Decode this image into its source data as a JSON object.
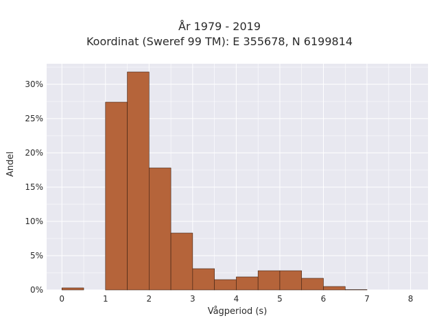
{
  "chart_data": {
    "type": "bar",
    "title_lines": [
      "År 1979 - 2019",
      "Koordinat (Sweref 99 TM): E 355678, N 6199814"
    ],
    "xlabel": "Vågperiod (s)",
    "ylabel": "Andel",
    "xlim": [
      -0.35,
      8.4
    ],
    "ylim": [
      0,
      33.0
    ],
    "x_ticks": [
      0,
      1,
      2,
      3,
      4,
      5,
      6,
      7,
      8
    ],
    "y_ticks": [
      0,
      5,
      10,
      15,
      20,
      25,
      30
    ],
    "y_tick_labels": [
      "0%",
      "5%",
      "10%",
      "15%",
      "20%",
      "25%",
      "30%"
    ],
    "grid": true,
    "bin_width": 0.5,
    "bins": [
      {
        "x0": 0.0,
        "x1": 0.5,
        "value": 0.3
      },
      {
        "x0": 0.5,
        "x1": 1.0,
        "value": 0.0
      },
      {
        "x0": 1.0,
        "x1": 1.5,
        "value": 27.4
      },
      {
        "x0": 1.5,
        "x1": 2.0,
        "value": 31.8
      },
      {
        "x0": 2.0,
        "x1": 2.5,
        "value": 17.8
      },
      {
        "x0": 2.5,
        "x1": 3.0,
        "value": 8.3
      },
      {
        "x0": 3.0,
        "x1": 3.5,
        "value": 3.1
      },
      {
        "x0": 3.5,
        "x1": 4.0,
        "value": 1.5
      },
      {
        "x0": 4.0,
        "x1": 4.5,
        "value": 1.9
      },
      {
        "x0": 4.5,
        "x1": 5.0,
        "value": 2.8
      },
      {
        "x0": 5.0,
        "x1": 5.5,
        "value": 2.8
      },
      {
        "x0": 5.5,
        "x1": 6.0,
        "value": 1.7
      },
      {
        "x0": 6.0,
        "x1": 6.5,
        "value": 0.5
      },
      {
        "x0": 6.5,
        "x1": 7.0,
        "value": 0.05
      }
    ],
    "colors": {
      "bar_fill": "#b5643a",
      "bar_stroke": "#3a1f12",
      "plot_bg": "#e8e8f0",
      "grid": "#ffffff"
    }
  }
}
